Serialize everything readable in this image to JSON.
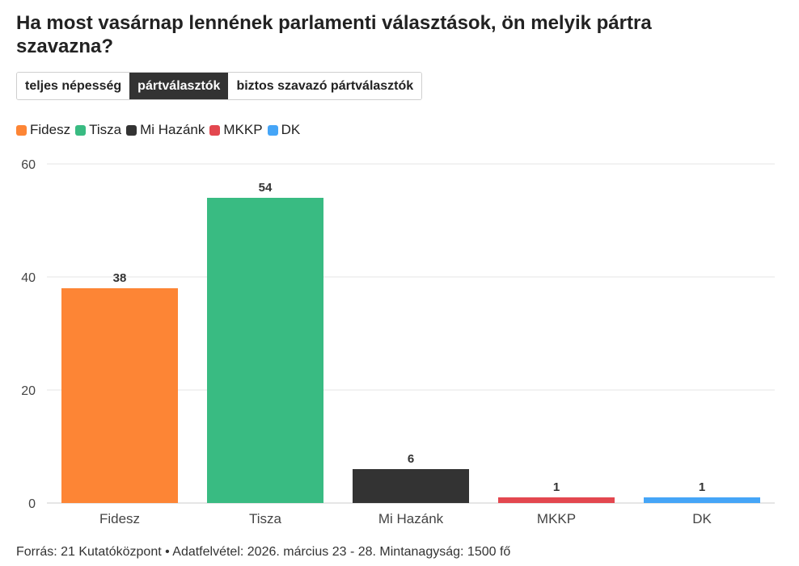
{
  "title": "Ha most vasárnap lennének parlamenti választások, ön melyik pártra szavazna?",
  "tabs": [
    {
      "label": "teljes népesség",
      "active": false
    },
    {
      "label": "pártválasztók",
      "active": true
    },
    {
      "label": "biztos szavazó pártválasztók",
      "active": false
    }
  ],
  "source": "Forrás: 21 Kutatóközpont • Adatfelvétel: 2026. március 23 - 28. Mintanagyság: 1500 fő",
  "chart_data": {
    "type": "bar",
    "categories": [
      "Fidesz",
      "Tisza",
      "Mi Hazánk",
      "MKKP",
      "DK"
    ],
    "values": [
      38,
      54,
      6,
      1,
      1
    ],
    "colors": [
      "#fd8535",
      "#39bb82",
      "#333333",
      "#e3474f",
      "#45a5f7"
    ],
    "legend": [
      "Fidesz",
      "Tisza",
      "Mi Hazánk",
      "MKKP",
      "DK"
    ],
    "legend_position": "top-left",
    "ylim": [
      0,
      60
    ],
    "yticks": [
      0,
      20,
      40,
      60
    ],
    "grid": true,
    "xlabel": "",
    "ylabel": ""
  }
}
